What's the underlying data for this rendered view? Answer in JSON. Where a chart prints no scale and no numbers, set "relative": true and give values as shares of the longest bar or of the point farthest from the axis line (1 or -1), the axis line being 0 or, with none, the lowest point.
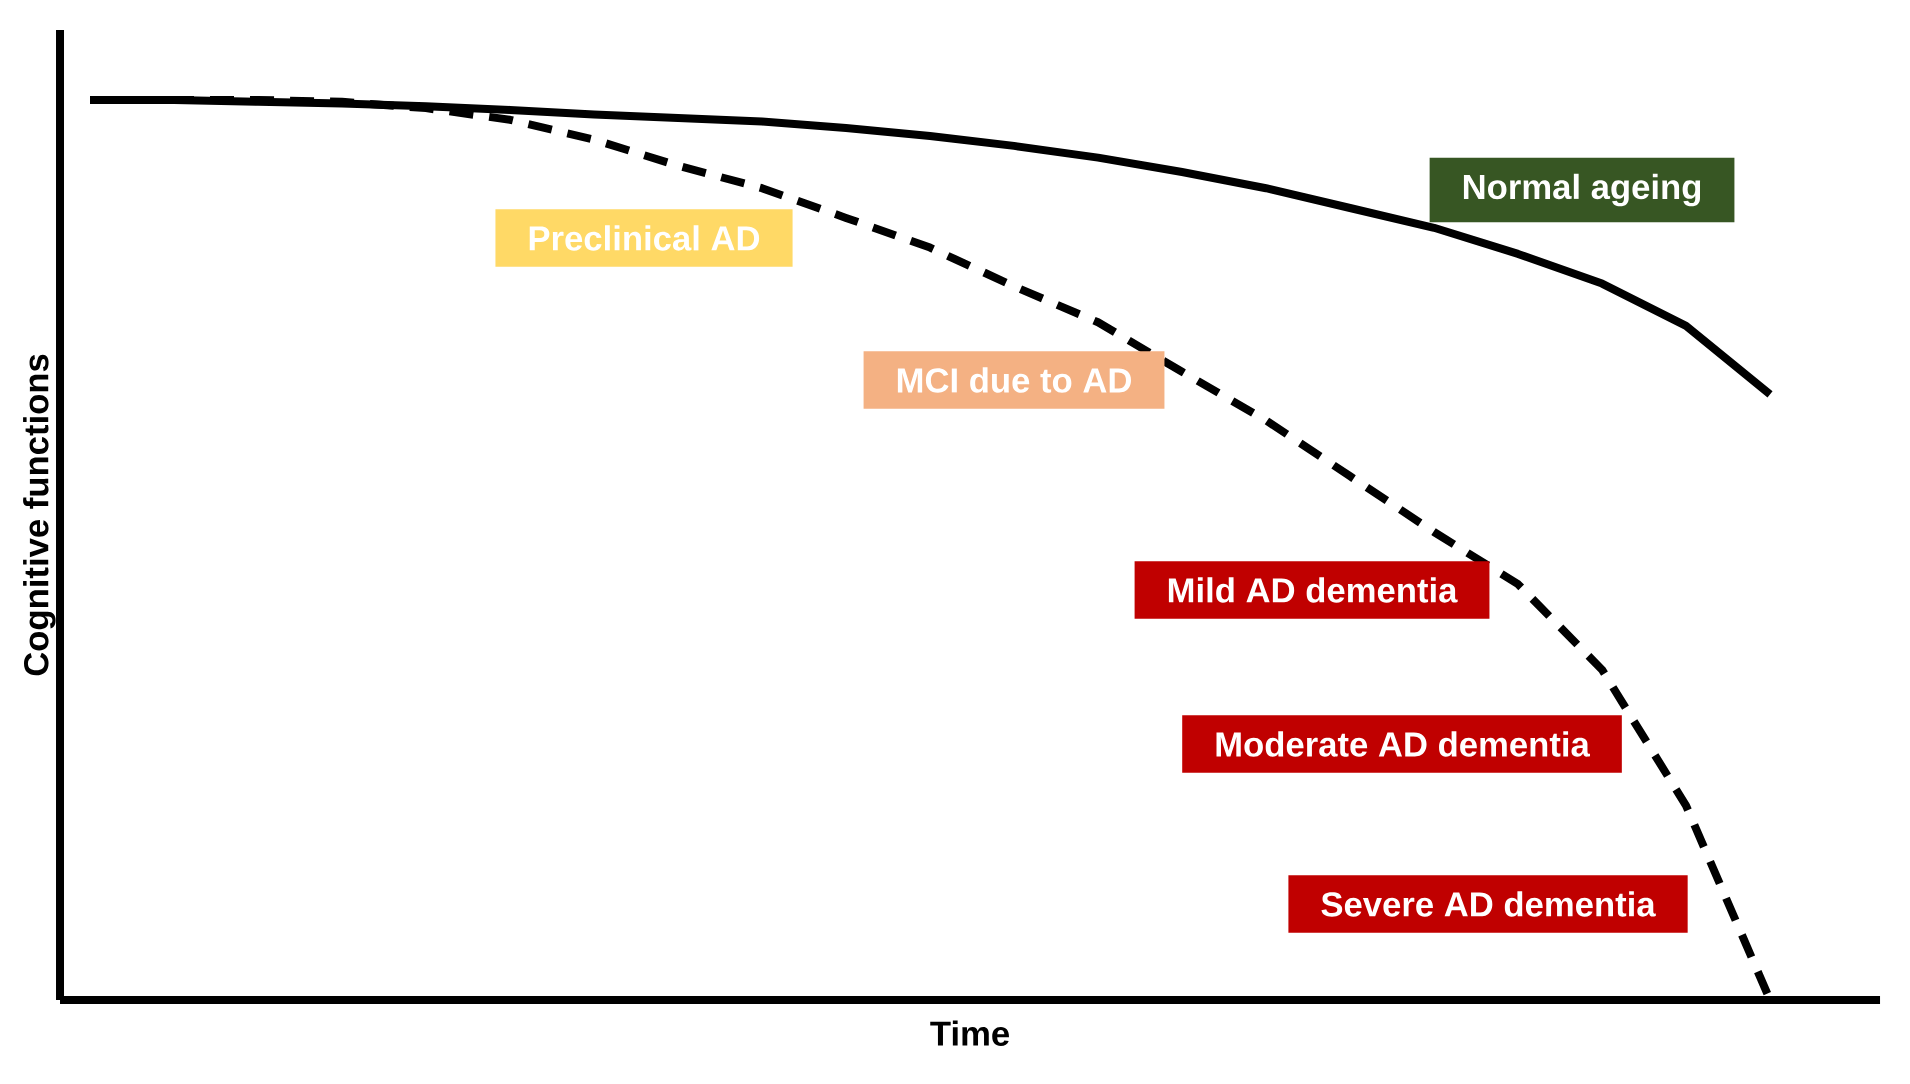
{
  "chart_data": {
    "type": "line",
    "relative": true,
    "xlabel": "Time",
    "ylabel": "Cognitive functions",
    "marker": "none",
    "categories": [
      null,
      null,
      null,
      null,
      null,
      null,
      null,
      null,
      null,
      null,
      null,
      null,
      null,
      null,
      null,
      null,
      null,
      null,
      null,
      null,
      null
    ],
    "series": [
      {
        "name": "Normal ageing",
        "color": "#000000",
        "line_style": "solid",
        "values": [
          1.0,
          1.0,
          0.998,
          0.996,
          0.993,
          0.989,
          0.984,
          0.98,
          0.976,
          0.969,
          0.96,
          0.949,
          0.936,
          0.92,
          0.902,
          0.88,
          0.858,
          0.829,
          0.796,
          0.749,
          0.673
        ]
      },
      {
        "color": "#000000",
        "line_style": "dashed",
        "values": [
          1.0,
          1.0,
          1.0,
          0.998,
          0.991,
          0.978,
          0.956,
          0.927,
          0.902,
          0.869,
          0.836,
          0.793,
          0.753,
          0.698,
          0.644,
          0.582,
          0.52,
          0.462,
          0.367,
          0.216,
          0.0
        ]
      }
    ],
    "annotations": [
      "Preclinical AD",
      "MCI due to AD",
      "Mild AD dementia",
      "Moderate AD dementia",
      "Severe AD dementia"
    ]
  }
}
